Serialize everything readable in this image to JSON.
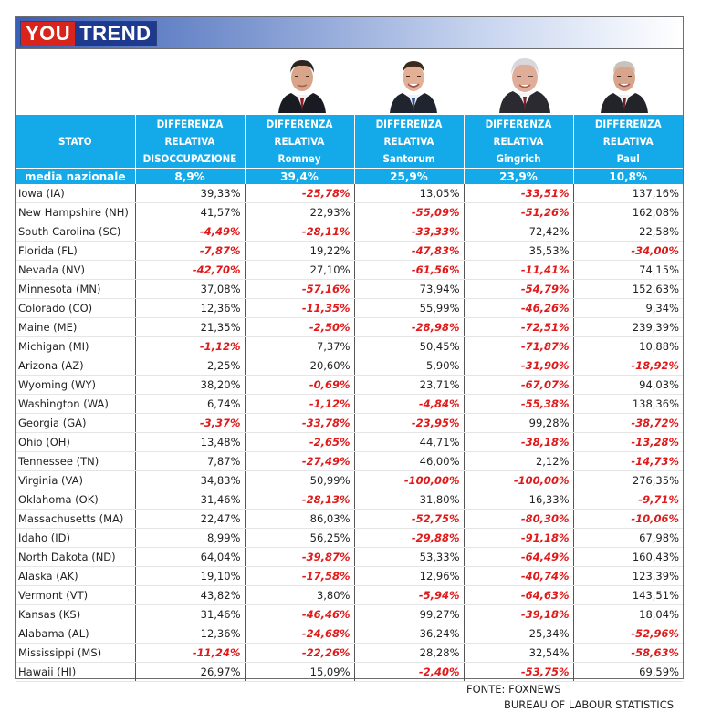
{
  "brand": {
    "part1": "YOU",
    "part2": "TREND"
  },
  "portraits": [
    {
      "icon": "romney-portrait-icon"
    },
    {
      "icon": "santorum-portrait-icon"
    },
    {
      "icon": "gingrich-portrait-icon"
    },
    {
      "icon": "paul-portrait-icon"
    }
  ],
  "headers": [
    {
      "l1": "STATO"
    },
    {
      "l1": "DIFFERENZA",
      "l2": "RELATIVA",
      "l3": "DISOCCUPAZIONE"
    },
    {
      "l1": "DIFFERENZA",
      "l2": "RELATIVA",
      "l3": "Romney"
    },
    {
      "l1": "DIFFERENZA",
      "l2": "RELATIVA",
      "l3": "Santorum"
    },
    {
      "l1": "DIFFERENZA",
      "l2": "RELATIVA",
      "l3": "Gingrich"
    },
    {
      "l1": "DIFFERENZA",
      "l2": "RELATIVA",
      "l3": "Paul"
    }
  ],
  "average": [
    "media nazionale",
    "8,9%",
    "39,4%",
    "25,9%",
    "23,9%",
    "10,8%"
  ],
  "rows": [
    [
      "Iowa (IA)",
      "39,33%",
      "-25,78%",
      "13,05%",
      "-33,51%",
      "137,16%"
    ],
    [
      "New Hampshire (NH)",
      "41,57%",
      "22,93%",
      "-55,09%",
      "-51,26%",
      "162,08%"
    ],
    [
      "South Carolina (SC)",
      "-4,49%",
      "-28,11%",
      "-33,33%",
      "72,42%",
      "22,58%"
    ],
    [
      "Florida (FL)",
      "-7,87%",
      "19,22%",
      "-47,83%",
      "35,53%",
      "-34,00%"
    ],
    [
      "Nevada (NV)",
      "-42,70%",
      "27,10%",
      "-61,56%",
      "-11,41%",
      "74,15%"
    ],
    [
      "Minnesota (MN)",
      "37,08%",
      "-57,16%",
      "73,94%",
      "-54,79%",
      "152,63%"
    ],
    [
      "Colorado (CO)",
      "12,36%",
      "-11,35%",
      "55,99%",
      "-46,26%",
      "9,34%"
    ],
    [
      "Maine (ME)",
      "21,35%",
      "-2,50%",
      "-28,98%",
      "-72,51%",
      "239,39%"
    ],
    [
      "Michigan (MI)",
      "-1,12%",
      "7,37%",
      "50,45%",
      "-71,87%",
      "10,88%"
    ],
    [
      "Arizona (AZ)",
      "2,25%",
      "20,60%",
      "5,90%",
      "-31,90%",
      "-18,92%"
    ],
    [
      "Wyoming (WY)",
      "38,20%",
      "-0,69%",
      "23,71%",
      "-67,07%",
      "94,03%"
    ],
    [
      "Washington (WA)",
      "6,74%",
      "-1,12%",
      "-4,84%",
      "-55,38%",
      "138,36%"
    ],
    [
      "Georgia (GA)",
      "-3,37%",
      "-33,78%",
      "-23,95%",
      "99,28%",
      "-38,72%"
    ],
    [
      "Ohio (OH)",
      "13,48%",
      "-2,65%",
      "44,71%",
      "-38,18%",
      "-13,28%"
    ],
    [
      "Tennessee (TN)",
      "7,87%",
      "-27,49%",
      "46,00%",
      "2,12%",
      "-14,73%"
    ],
    [
      "Virginia (VA)",
      "34,83%",
      "50,99%",
      "-100,00%",
      "-100,00%",
      "276,35%"
    ],
    [
      "Oklahoma (OK)",
      "31,46%",
      "-28,13%",
      "31,80%",
      "16,33%",
      "-9,71%"
    ],
    [
      "Massachusetts (MA)",
      "22,47%",
      "86,03%",
      "-52,75%",
      "-80,30%",
      "-10,06%"
    ],
    [
      "Idaho (ID)",
      "8,99%",
      "56,25%",
      "-29,88%",
      "-91,18%",
      "67,98%"
    ],
    [
      "North Dakota (ND)",
      "64,04%",
      "-39,87%",
      "53,33%",
      "-64,49%",
      "160,43%"
    ],
    [
      "Alaska (AK)",
      "19,10%",
      "-17,58%",
      "12,96%",
      "-40,74%",
      "123,39%"
    ],
    [
      "Vermont (VT)",
      "43,82%",
      "3,80%",
      "-5,94%",
      "-64,63%",
      "143,51%"
    ],
    [
      "Kansas (KS)",
      "31,46%",
      "-46,46%",
      "99,27%",
      "-39,18%",
      "18,04%"
    ],
    [
      "Alabama (AL)",
      "12,36%",
      "-24,68%",
      "36,24%",
      "25,34%",
      "-52,96%"
    ],
    [
      "Mississippi (MS)",
      "-11,24%",
      "-22,26%",
      "28,28%",
      "32,54%",
      "-58,63%"
    ],
    [
      "Hawaii (HI)",
      "26,97%",
      "15,09%",
      "-2,40%",
      "-53,75%",
      "69,59%"
    ]
  ],
  "source": {
    "line1": "FONTE: FOXNEWS",
    "line2": "BUREAU OF LABOUR STATISTICS"
  },
  "colors": {
    "header_bg": "#14a9e8",
    "negative": "#e01a1a",
    "brand_red": "#d9241b",
    "brand_blue": "#1e3a8e"
  }
}
